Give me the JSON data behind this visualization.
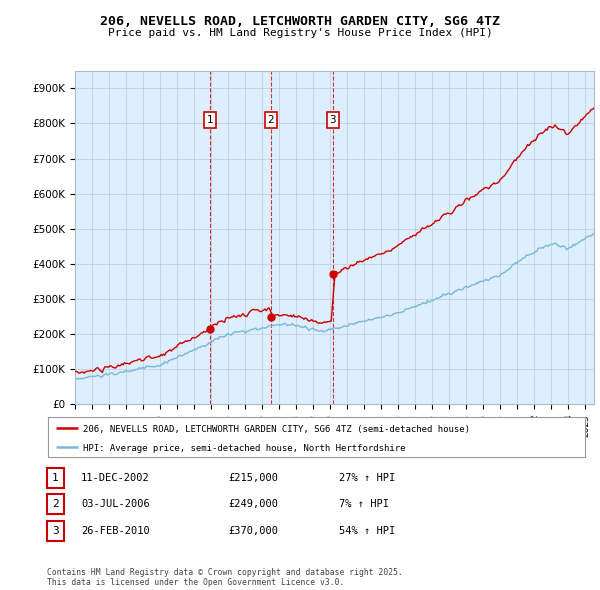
{
  "title_line1": "206, NEVELLS ROAD, LETCHWORTH GARDEN CITY, SG6 4TZ",
  "title_line2": "Price paid vs. HM Land Registry's House Price Index (HPI)",
  "ylim": [
    0,
    950000
  ],
  "yticks": [
    0,
    100000,
    200000,
    300000,
    400000,
    500000,
    600000,
    700000,
    800000,
    900000
  ],
  "ytick_labels": [
    "£0",
    "£100K",
    "£200K",
    "£300K",
    "£400K",
    "£500K",
    "£600K",
    "£700K",
    "£800K",
    "£900K"
  ],
  "sale_dates_decimal": [
    2002.95,
    2006.5,
    2010.15
  ],
  "sale_prices": [
    215000,
    249000,
    370000
  ],
  "sale_labels": [
    "1",
    "2",
    "3"
  ],
  "hpi_color": "#7ab8d9",
  "sale_color": "#cc0000",
  "chart_bg": "#ddeeff",
  "legend_sale_label": "206, NEVELLS ROAD, LETCHWORTH GARDEN CITY, SG6 4TZ (semi-detached house)",
  "legend_hpi_label": "HPI: Average price, semi-detached house, North Hertfordshire",
  "table_rows": [
    [
      "1",
      "11-DEC-2002",
      "£215,000",
      "27% ↑ HPI"
    ],
    [
      "2",
      "03-JUL-2006",
      "£249,000",
      "7% ↑ HPI"
    ],
    [
      "3",
      "26-FEB-2010",
      "£370,000",
      "54% ↑ HPI"
    ]
  ],
  "footnote": "Contains HM Land Registry data © Crown copyright and database right 2025.\nThis data is licensed under the Open Government Licence v3.0.",
  "background_color": "#ffffff",
  "grid_color": "#bbccdd"
}
